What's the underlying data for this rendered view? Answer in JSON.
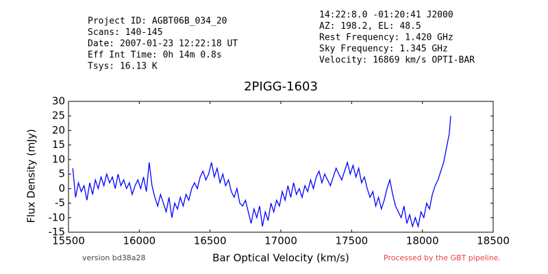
{
  "header_left": [
    "Project ID: AGBT06B_034_20",
    "Scans: 140-145",
    "Date: 2007-01-23 12:22:18 UT",
    "Eff Int Time: 0h 14m 0.8s",
    "Tsys: 16.13 K"
  ],
  "header_right": [
    "14:22:8.0 -01:20:41 J2000",
    "AZ: 198.2, EL: 48.5",
    "Rest Frequency:   1.420 GHz",
    "Sky Frequency:    1.345 GHz",
    "Velocity: 16869 km/s OPTI-BAR"
  ],
  "footer_left": "version bd38a28",
  "footer_right": "Processed by the GBT pipeline.",
  "chart_data": {
    "type": "line",
    "title": "2PIGG-1603",
    "x_label": "Bar Optical Velocity (km/s)",
    "y_label": "Flux Density (mJy)",
    "xlim": [
      15500,
      18500
    ],
    "xticks": [
      15500,
      16000,
      16500,
      17000,
      17500,
      18000,
      18500
    ],
    "ylim": [
      -15,
      30
    ],
    "yticks": [
      -15,
      -10,
      -5,
      0,
      5,
      10,
      15,
      20,
      25,
      30
    ],
    "series": [
      {
        "color": "#0000ff",
        "x": [
          15530,
          15550,
          15570,
          15590,
          15610,
          15630,
          15650,
          15670,
          15690,
          15710,
          15730,
          15750,
          15770,
          15790,
          15810,
          15830,
          15850,
          15870,
          15890,
          15910,
          15930,
          15950,
          15970,
          15990,
          16010,
          16030,
          16050,
          16070,
          16090,
          16110,
          16130,
          16150,
          16170,
          16190,
          16210,
          16230,
          16250,
          16270,
          16290,
          16310,
          16330,
          16350,
          16370,
          16390,
          16410,
          16430,
          16450,
          16470,
          16490,
          16510,
          16530,
          16550,
          16570,
          16590,
          16610,
          16630,
          16650,
          16670,
          16690,
          16710,
          16730,
          16750,
          16770,
          16790,
          16810,
          16830,
          16850,
          16870,
          16890,
          16910,
          16930,
          16950,
          16970,
          16990,
          17010,
          17030,
          17050,
          17070,
          17090,
          17110,
          17130,
          17150,
          17170,
          17190,
          17210,
          17230,
          17250,
          17270,
          17290,
          17310,
          17330,
          17350,
          17370,
          17390,
          17410,
          17430,
          17450,
          17470,
          17490,
          17510,
          17530,
          17550,
          17570,
          17590,
          17610,
          17630,
          17650,
          17670,
          17690,
          17710,
          17730,
          17750,
          17770,
          17790,
          17810,
          17830,
          17850,
          17870,
          17890,
          17910,
          17930,
          17950,
          17970,
          17990,
          18010,
          18030,
          18050,
          18070,
          18090,
          18110,
          18130,
          18150,
          18170,
          18190,
          18200
        ],
        "values": [
          7,
          -3,
          2,
          -1,
          1,
          -4,
          2,
          -2,
          3,
          0,
          4,
          1,
          5,
          2,
          4,
          0,
          5,
          1,
          3,
          0,
          2,
          -2,
          1,
          3,
          0,
          4,
          -1,
          9,
          1,
          -3,
          -6,
          -2,
          -5,
          -8,
          -3,
          -10,
          -5,
          -7,
          -3,
          -6,
          -2,
          -4,
          0,
          2,
          0,
          4,
          6,
          3,
          5,
          9,
          4,
          7,
          2,
          5,
          1,
          3,
          -1,
          -3,
          0,
          -5,
          -6,
          -4,
          -8,
          -12,
          -7,
          -10,
          -6,
          -13,
          -8,
          -11,
          -5,
          -8,
          -4,
          -6,
          -1,
          -4,
          1,
          -3,
          2,
          -2,
          0,
          -3,
          1,
          -1,
          3,
          0,
          4,
          6,
          2,
          5,
          3,
          1,
          4,
          7,
          5,
          3,
          6,
          9,
          5,
          8,
          4,
          7,
          2,
          4,
          0,
          -3,
          -1,
          -6,
          -3,
          -7,
          -4,
          0,
          3,
          -2,
          -6,
          -8,
          -10,
          -6,
          -12,
          -9,
          -13,
          -10,
          -13,
          -8,
          -10,
          -5,
          -7,
          -2,
          1,
          3,
          6,
          9,
          14,
          19,
          25
        ]
      }
    ]
  }
}
